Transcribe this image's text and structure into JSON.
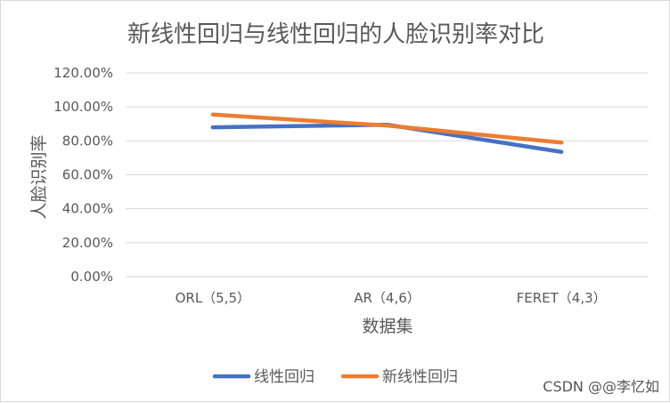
{
  "chart_data": {
    "type": "line",
    "title": "新线性回归与线性回归的人脸识别率对比",
    "xlabel": "数据集",
    "ylabel": "人脸识别率",
    "categories": [
      "ORL（5,5）",
      "AR（4,6）",
      "FERET（4,3）"
    ],
    "ylim": [
      0,
      1.2
    ],
    "yticks": [
      0,
      0.2,
      0.4,
      0.6,
      0.8,
      1.0,
      1.2
    ],
    "ytick_labels": [
      "0.00%",
      "20.00%",
      "40.00%",
      "60.00%",
      "80.00%",
      "100.00%",
      "120.00%"
    ],
    "grid": true,
    "legend_position": "bottom",
    "series": [
      {
        "name": "线性回归",
        "color": "#4472c4",
        "values": [
          0.88,
          0.895,
          0.735
        ]
      },
      {
        "name": "新线性回归",
        "color": "#ed7d31",
        "values": [
          0.955,
          0.89,
          0.79
        ]
      }
    ]
  },
  "watermark": "CSDN @@李忆如"
}
